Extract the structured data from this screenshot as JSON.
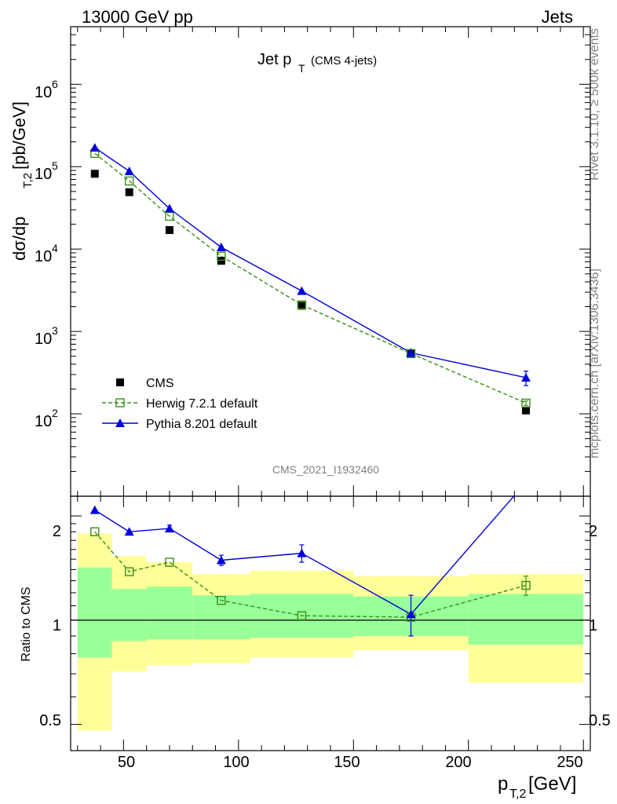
{
  "header": {
    "left": "13000 GeV pp",
    "right": "Jets"
  },
  "side": {
    "rivet": "Rivet 3.1.10, ≥ 500k events",
    "mcplots": "mcplots.cern.ch [arXiv:1306.3436]"
  },
  "plot": {
    "title_main": "Jet p",
    "title_sub": "T",
    "title_extra": "(CMS 4-jets)",
    "ylabel": "dσ/dp",
    "ylabel_sub": "T,2",
    "ylabel_unit": " [pb/GeV]",
    "watermark": "CMS_2021_I1932460",
    "xlabel": "p",
    "xlabel_sub": "T,2",
    "xlabel_unit": " [GeV]",
    "ratio_ylabel": "Ratio to CMS"
  },
  "ticks": {
    "main_y": [
      "10",
      "10",
      "10",
      "10",
      "10"
    ],
    "main_y_exp": [
      "2",
      "3",
      "4",
      "5",
      "6"
    ],
    "ratio_y": [
      "0.5",
      "1",
      "2"
    ],
    "x": [
      "50",
      "100",
      "150",
      "200",
      "250"
    ]
  },
  "legend": [
    {
      "label": "CMS"
    },
    {
      "label": "Herwig 7.2.1 default"
    },
    {
      "label": "Pythia 8.201 default"
    }
  ],
  "colors": {
    "cms": "#000000",
    "herwig": "#3a8f1a",
    "pythia": "#0000dd",
    "band_inner": "#99ff99",
    "band_outer": "#ffff99"
  },
  "chart_data": [
    {
      "type": "scatter",
      "xlim": [
        27,
        253
      ],
      "ylim": [
        10,
        5000000
      ],
      "yscale": "log",
      "x": [
        37.5,
        52.5,
        70,
        92.5,
        127.5,
        175,
        225
      ],
      "series": [
        {
          "name": "CMS",
          "values": [
            82000,
            49000,
            17000,
            7200,
            2050,
            530,
            110
          ],
          "style": "filled-square"
        },
        {
          "name": "Herwig 7.2.1 default",
          "values": [
            145000,
            67000,
            25000,
            8200,
            2100,
            540,
            135
          ],
          "style": "open-square-dashed",
          "errors": [
            0,
            0,
            0,
            0,
            0,
            0,
            8
          ]
        },
        {
          "name": "Pythia 8.201 default",
          "values": [
            170000,
            88000,
            31000,
            10500,
            3100,
            550,
            275
          ],
          "style": "triangle-solid",
          "errors": [
            0,
            0,
            0,
            0,
            0,
            30,
            55
          ]
        }
      ]
    },
    {
      "type": "line",
      "xlim": [
        27,
        253
      ],
      "ylim": [
        0.42,
        2.28
      ],
      "yscale": "log",
      "reference": 1,
      "x": [
        37.5,
        52.5,
        70,
        92.5,
        127.5,
        175,
        225
      ],
      "bands": {
        "bin_edges": [
          30,
          45,
          60,
          80,
          105,
          150,
          200,
          250
        ],
        "inner_low": [
          0.78,
          0.87,
          0.88,
          0.88,
          0.89,
          0.9,
          0.85
        ],
        "inner_high": [
          1.42,
          1.23,
          1.25,
          1.18,
          1.19,
          1.17,
          1.19
        ],
        "outer_low": [
          0.48,
          0.71,
          0.74,
          0.75,
          0.78,
          0.82,
          0.66
        ],
        "outer_high": [
          1.78,
          1.53,
          1.47,
          1.36,
          1.39,
          1.34,
          1.36
        ]
      },
      "series": [
        {
          "name": "Herwig 7.2.1 default",
          "values": [
            1.8,
            1.38,
            1.47,
            1.14,
            1.03,
            1.02,
            1.26
          ],
          "errors": [
            0,
            0,
            0,
            0,
            0,
            0,
            0.08
          ]
        },
        {
          "name": "Pythia 8.201 default",
          "values": [
            2.08,
            1.8,
            1.84,
            1.49,
            1.56,
            1.04,
            2.5
          ],
          "errors": [
            0,
            0,
            0.04,
            0.05,
            0.09,
            0.14,
            0
          ]
        }
      ]
    }
  ]
}
